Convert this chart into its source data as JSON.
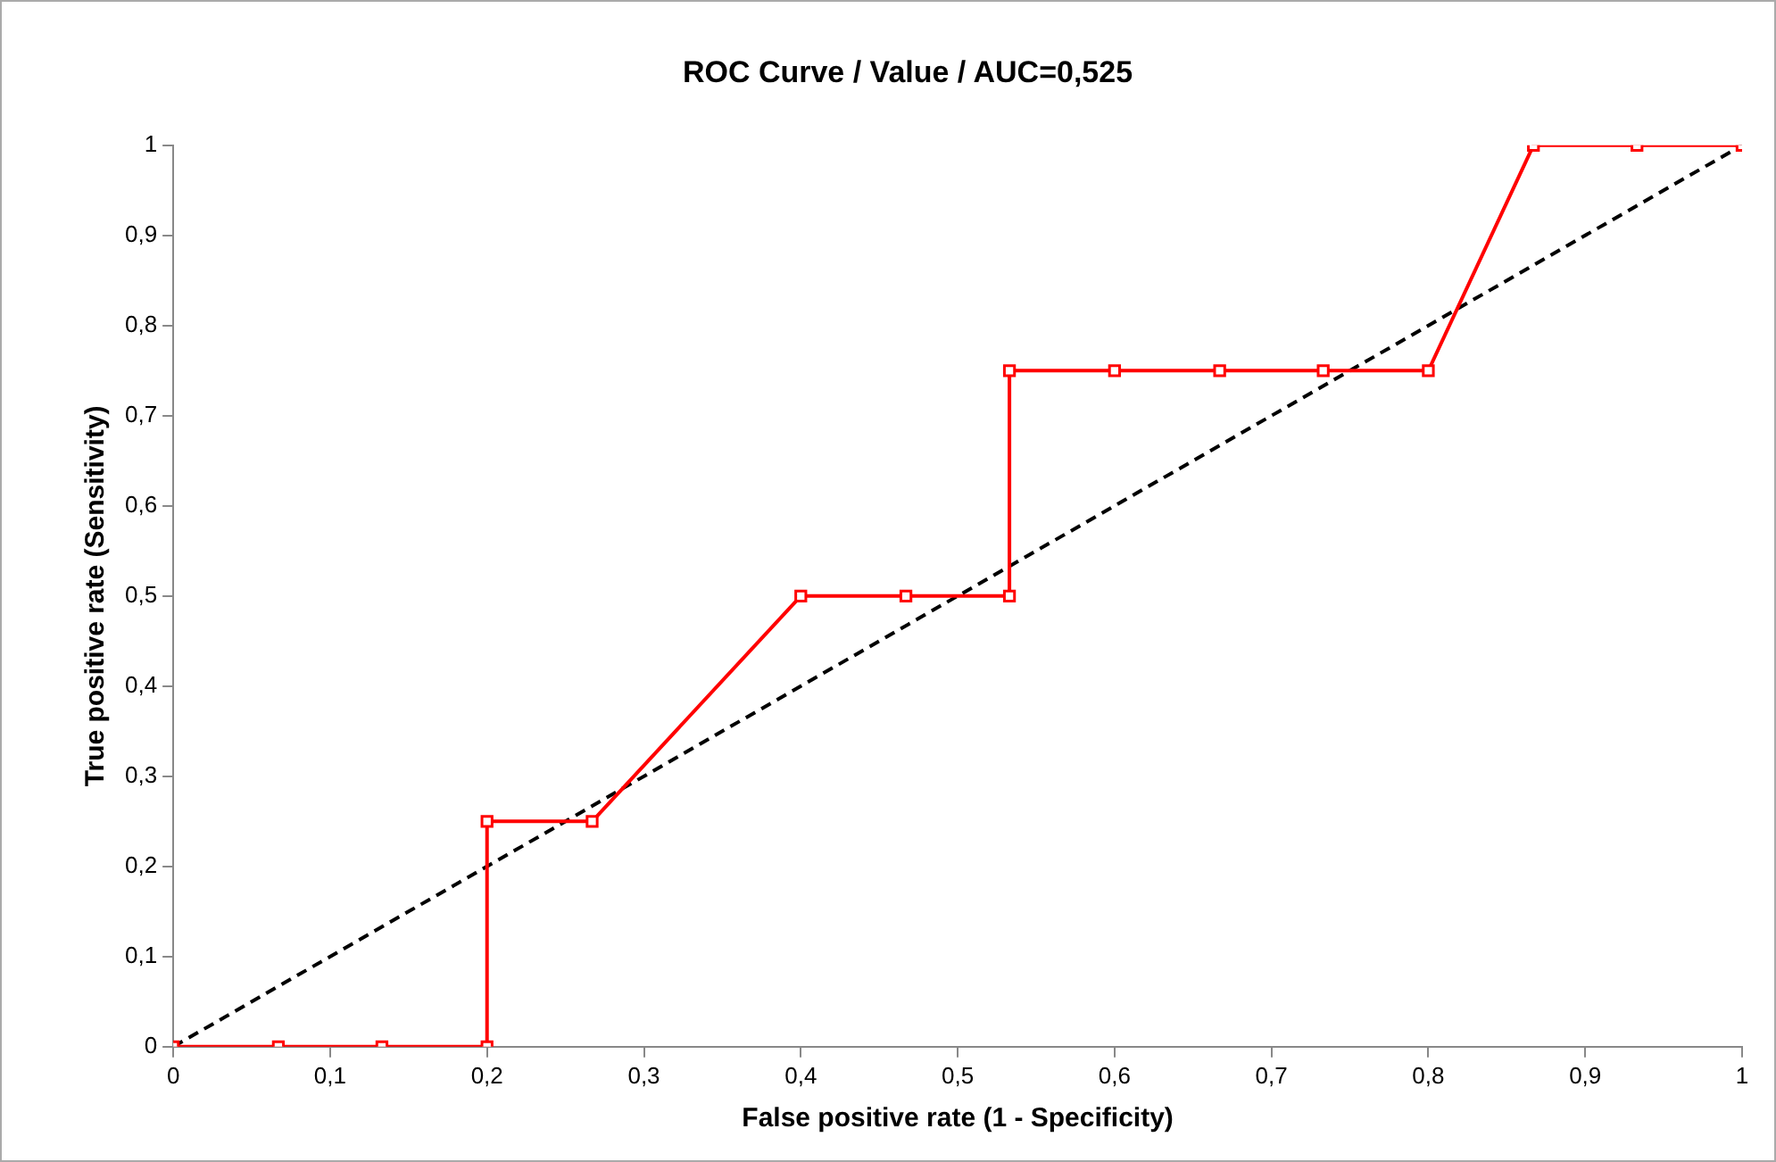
{
  "chart_data": {
    "type": "line",
    "title": "ROC Curve / Value / AUC=0,525",
    "xlabel": "False positive rate (1 - Specificity)",
    "ylabel": "True positive rate (Sensitivity)",
    "series": [
      {
        "color": "#ff0000",
        "marker": "square",
        "line_style": "solid",
        "x": [
          0,
          0.067,
          0.133,
          0.2,
          0.2,
          0.267,
          0.4,
          0.467,
          0.533,
          0.533,
          0.6,
          0.667,
          0.733,
          0.8,
          0.867,
          0.933,
          1
        ],
        "values": [
          0,
          0,
          0,
          0,
          0.25,
          0.25,
          0.5,
          0.5,
          0.5,
          0.75,
          0.75,
          0.75,
          0.75,
          0.75,
          1,
          1,
          1
        ]
      },
      {
        "color": "#000000",
        "marker": "none",
        "line_style": "dashed",
        "x": [
          0,
          1
        ],
        "values": [
          0,
          1
        ]
      }
    ],
    "xlim": [
      0,
      1
    ],
    "ylim": [
      0,
      1
    ],
    "xticks": [
      0,
      {
        "value": 0.1,
        "label": "0,1"
      },
      {
        "value": 0.2,
        "label": "0,2"
      },
      {
        "value": 0.3,
        "label": "0,3"
      },
      {
        "value": 0.4,
        "label": "0,4"
      },
      {
        "value": 0.5,
        "label": "0,5"
      },
      {
        "value": 0.6,
        "label": "0,6"
      },
      {
        "value": 0.7,
        "label": "0,7"
      },
      {
        "value": 0.8,
        "label": "0,8"
      },
      {
        "value": 0.9,
        "label": "0,9"
      },
      1
    ],
    "yticks": [
      0,
      {
        "value": 0.1,
        "label": "0,1"
      },
      {
        "value": 0.2,
        "label": "0,2"
      },
      {
        "value": 0.3,
        "label": "0,3"
      },
      {
        "value": 0.4,
        "label": "0,4"
      },
      {
        "value": 0.5,
        "label": "0,5"
      },
      {
        "value": 0.6,
        "label": "0,6"
      },
      {
        "value": 0.7,
        "label": "0,7"
      },
      {
        "value": 0.8,
        "label": "0,8"
      },
      {
        "value": 0.9,
        "label": "0,9"
      },
      1
    ],
    "grid": false,
    "legend": false
  }
}
